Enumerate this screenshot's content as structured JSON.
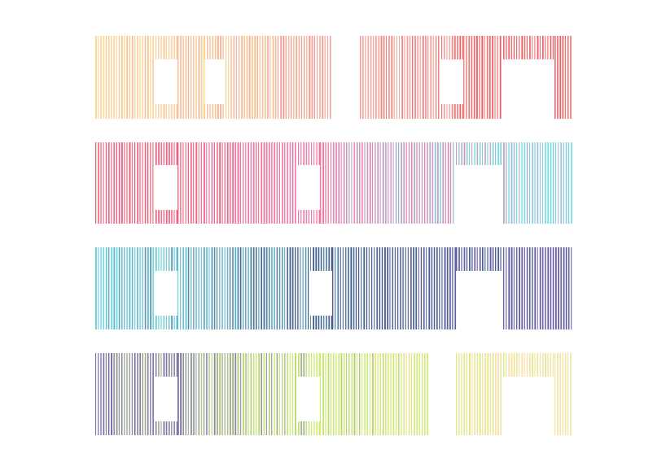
{
  "rows": [
    {
      "colors": [
        "#fbd98c",
        "#f4a59a",
        "#ee5a5f"
      ]
    },
    {
      "colors": [
        "#ee5a6a",
        "#f27ab0",
        "#6de0e4"
      ]
    },
    {
      "colors": [
        "#6fd8e0",
        "#3f5f8a",
        "#6a5ea8"
      ]
    },
    {
      "colors": [
        "#6a5ea8",
        "#c8ec6a",
        "#fbe0a8"
      ]
    }
  ]
}
